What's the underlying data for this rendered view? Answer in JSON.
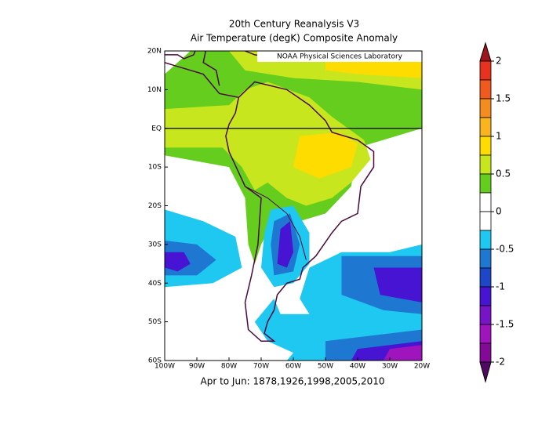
{
  "title": "20th Century Reanalysis V3",
  "subtitle": "Air Temperature (degK) Composite Anomaly",
  "footer": "Apr to Jun: 1878,1926,1998,2005,2010",
  "credit": "NOAA Physical Sciences Laboratory",
  "map": {
    "xlim": [
      -100,
      -20
    ],
    "ylim": [
      -60,
      20
    ],
    "xticks": [
      {
        "value": -100,
        "label": "100W"
      },
      {
        "value": -90,
        "label": "90W"
      },
      {
        "value": -80,
        "label": "80W"
      },
      {
        "value": -70,
        "label": "70W"
      },
      {
        "value": -60,
        "label": "60W"
      },
      {
        "value": -50,
        "label": "50W"
      },
      {
        "value": -40,
        "label": "40W"
      },
      {
        "value": -30,
        "label": "30W"
      },
      {
        "value": -20,
        "label": "20W"
      }
    ],
    "yticks": [
      {
        "value": 20,
        "label": "20N"
      },
      {
        "value": 10,
        "label": "10N"
      },
      {
        "value": 0,
        "label": "EQ"
      },
      {
        "value": -10,
        "label": "10S"
      },
      {
        "value": -20,
        "label": "20S"
      },
      {
        "value": -30,
        "label": "30S"
      },
      {
        "value": -40,
        "label": "40S"
      },
      {
        "value": -50,
        "label": "50S"
      },
      {
        "value": -60,
        "label": "60S"
      }
    ]
  },
  "colorbar": {
    "lim": [
      -2,
      2
    ],
    "ticks": [
      2,
      1.5,
      1,
      0.5,
      0,
      -0.5,
      -1,
      -1.5,
      -2
    ],
    "colors": [
      "#a0141e",
      "#e6321e",
      "#f05a1e",
      "#f58c1e",
      "#fab41e",
      "#ffdc00",
      "#c8e61e",
      "#64cd1e",
      "#ffffff",
      "#ffffff",
      "#1ec8f0",
      "#1e78d2",
      "#1e46c8",
      "#4614d2",
      "#7814c8",
      "#a014be",
      "#820a96",
      "#500a64"
    ]
  }
}
